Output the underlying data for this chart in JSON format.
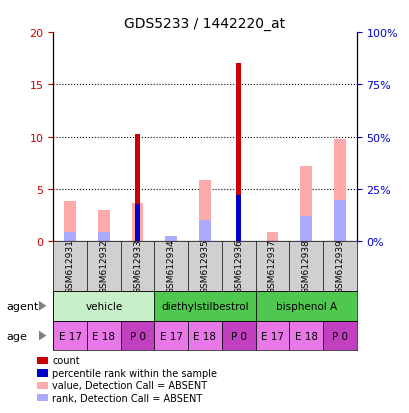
{
  "title": "GDS5233 / 1442220_at",
  "samples": [
    "GSM612931",
    "GSM612932",
    "GSM612933",
    "GSM612934",
    "GSM612935",
    "GSM612936",
    "GSM612937",
    "GSM612938",
    "GSM612939"
  ],
  "count": [
    0.0,
    0.0,
    10.3,
    0.0,
    0.0,
    17.0,
    0.0,
    0.0,
    0.0
  ],
  "percentile": [
    0.0,
    0.0,
    3.6,
    0.0,
    0.0,
    4.4,
    0.0,
    0.0,
    0.0
  ],
  "absent_value": [
    3.8,
    3.0,
    3.7,
    0.0,
    5.9,
    0.0,
    0.9,
    7.2,
    9.8
  ],
  "absent_rank": [
    0.9,
    0.9,
    0.0,
    0.5,
    2.0,
    0.0,
    0.0,
    2.4,
    3.9
  ],
  "ylim_left": [
    0,
    20
  ],
  "ylim_right": [
    0,
    100
  ],
  "yticks_left": [
    0,
    5,
    10,
    15,
    20
  ],
  "yticks_right": [
    0,
    25,
    50,
    75,
    100
  ],
  "ytick_labels_left": [
    "0",
    "5",
    "10",
    "15",
    "20"
  ],
  "ytick_labels_right": [
    "0%",
    "25%",
    "50%",
    "75%",
    "100%"
  ],
  "age_labels": [
    "E 17",
    "E 18",
    "P 0",
    "E 17",
    "E 18",
    "P 0",
    "E 17",
    "E 18",
    "P 0"
  ],
  "age_colors": [
    "#e878e8",
    "#e878e8",
    "#c040c0",
    "#e878e8",
    "#e878e8",
    "#c040c0",
    "#e878e8",
    "#e878e8",
    "#c040c0"
  ],
  "color_count": "#cc0000",
  "color_percentile": "#0000cc",
  "color_absent_value": "#ffaaaa",
  "color_absent_rank": "#aaaaff",
  "bg_color_plot": "#ffffff",
  "bg_color_xticklabels": "#d0d0d0",
  "grid_color": "#000000",
  "left_tick_color": "#cc0000",
  "right_tick_color": "#0000cc",
  "agent_groups": [
    {
      "label": "vehicle",
      "color": "#c8f0c8",
      "start": 0,
      "end": 3
    },
    {
      "label": "diethylstilbestrol",
      "color": "#50c850",
      "start": 3,
      "end": 6
    },
    {
      "label": "bisphenol A",
      "color": "#50c850",
      "start": 6,
      "end": 9
    }
  ],
  "legend_items": [
    {
      "color": "#cc0000",
      "label": "count"
    },
    {
      "color": "#0000cc",
      "label": "percentile rank within the sample"
    },
    {
      "color": "#ffaaaa",
      "label": "value, Detection Call = ABSENT"
    },
    {
      "color": "#aaaaff",
      "label": "rank, Detection Call = ABSENT"
    }
  ]
}
